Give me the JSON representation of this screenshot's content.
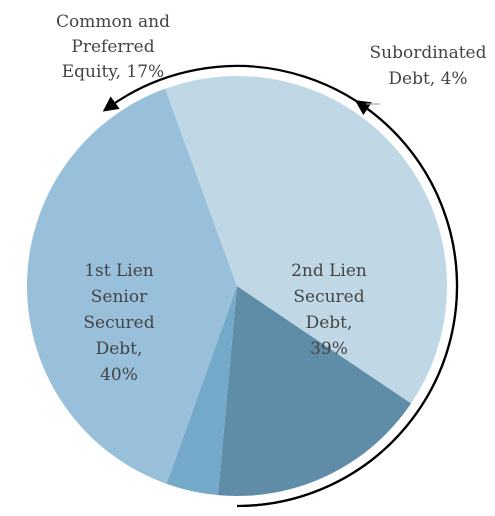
{
  "chart_data": {
    "type": "pie",
    "title": "",
    "slices": [
      {
        "label": "Common and Preferred Equity, 17%",
        "value": 17,
        "color": "#5f8ca6"
      },
      {
        "label": "Subordinated Debt, 4%",
        "value": 4,
        "color": "#75a9c9"
      },
      {
        "label": "2nd Lien Secured Debt, 39%",
        "value": 39,
        "color": "#98c0da"
      },
      {
        "label": "1st Lien Senior Secured Debt, 40%",
        "value": 40,
        "color": "#c0d8e6"
      }
    ]
  }
}
